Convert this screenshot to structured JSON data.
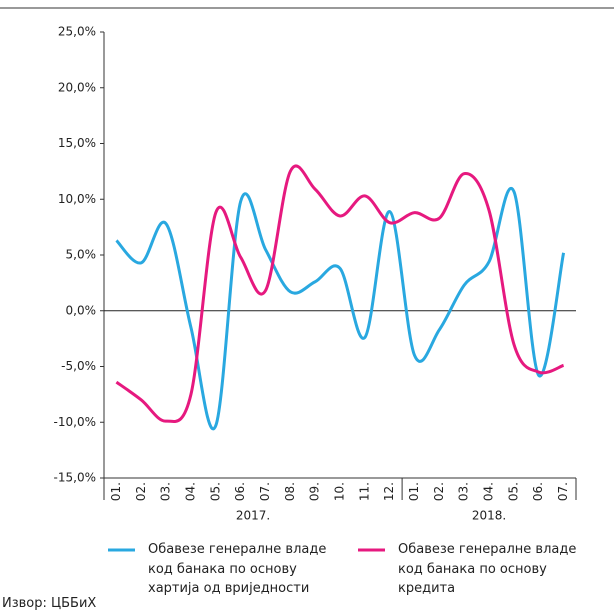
{
  "chart_data": {
    "type": "line",
    "categories": [
      "01.",
      "02.",
      "03.",
      "04.",
      "05.",
      "06.",
      "07.",
      "08.",
      "09.",
      "10.",
      "11.",
      "12.",
      "01.",
      "02.",
      "03.",
      "04.",
      "05.",
      "06.",
      "07."
    ],
    "years": [
      "2017.",
      "2018."
    ],
    "series": [
      {
        "name": "Обавезе генералне владе код банака по основу хартија од вриједности",
        "color": "#29a8e0",
        "values": [
          6.3,
          4.3,
          7.8,
          -1.5,
          -10.3,
          9.8,
          5.5,
          1.7,
          2.6,
          3.8,
          -2.4,
          8.9,
          -4.0,
          -1.7,
          2.3,
          4.4,
          10.7,
          -5.8,
          5.2
        ]
      },
      {
        "name": "Обавезе генералне владе код банака по основу кредита",
        "color": "#e6197f",
        "values": [
          -6.4,
          -8.0,
          -9.9,
          -7.5,
          8.8,
          4.8,
          1.8,
          12.5,
          10.9,
          8.5,
          10.3,
          7.9,
          8.8,
          8.3,
          12.3,
          9.0,
          -3.0,
          -5.5,
          -4.9
        ]
      }
    ],
    "ylim": [
      -15,
      25
    ],
    "yticks": [
      {
        "value": -15,
        "label": "-15,0%"
      },
      {
        "value": -10,
        "label": "-10,0%"
      },
      {
        "value": -5,
        "label": "-5,0%"
      },
      {
        "value": 0,
        "label": "0,0%"
      },
      {
        "value": 5,
        "label": "5,0%"
      },
      {
        "value": 10,
        "label": "10,0%"
      },
      {
        "value": 15,
        "label": "15,0%"
      },
      {
        "value": 20,
        "label": "20,0%"
      },
      {
        "value": 25,
        "label": "25,0%"
      }
    ],
    "grid": false,
    "source": "Извор: ЦББиХ"
  }
}
